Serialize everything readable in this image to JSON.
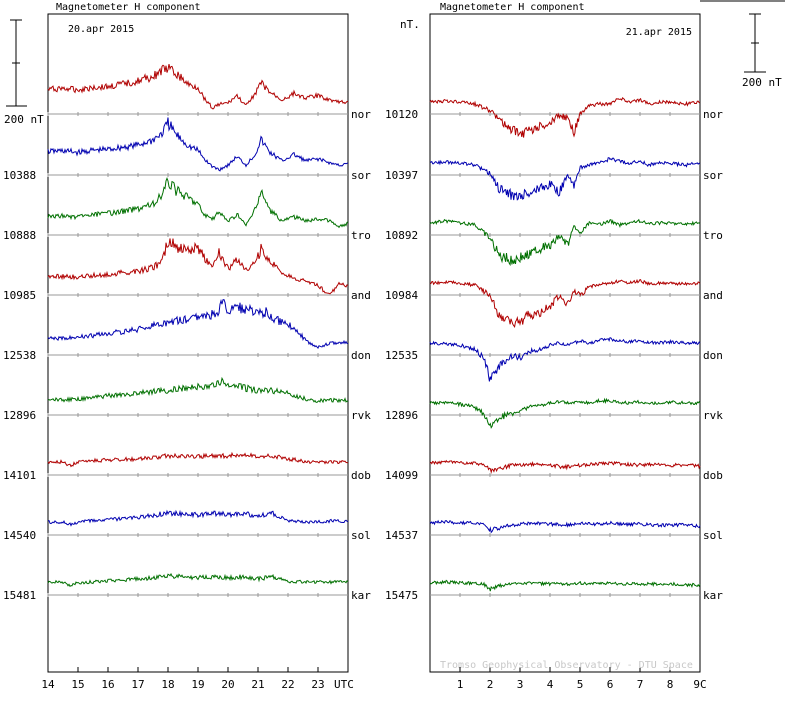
{
  "chart_data": [
    {
      "type": "line",
      "title": "Magnetometer H component",
      "date": "20.apr 2015",
      "scale_label": "200 nT",
      "x_tick_labels": [
        "14",
        "15",
        "16",
        "17",
        "18",
        "19",
        "20",
        "21",
        "22",
        "23",
        "UTC"
      ],
      "x_range": [
        14,
        24
      ],
      "stations": [
        {
          "name": "nor",
          "baseline": "",
          "color": "#b00000",
          "x": [
            14,
            14.5,
            15,
            15.5,
            16,
            16.5,
            17,
            17.5,
            17.8,
            18,
            18.3,
            18.7,
            19,
            19.2,
            19.5,
            19.7,
            20,
            20.3,
            20.6,
            20.9,
            21.1,
            21.4,
            21.8,
            22.2,
            22.6,
            23,
            23.4,
            23.7,
            24
          ],
          "y": [
            60,
            65,
            58,
            70,
            72,
            85,
            100,
            120,
            150,
            160,
            130,
            80,
            70,
            20,
            -30,
            -10,
            -5,
            30,
            -20,
            40,
            90,
            45,
            10,
            40,
            20,
            30,
            10,
            0,
            0
          ]
        },
        {
          "name": "sor",
          "baseline": "10388",
          "color": "#0000b0",
          "x": [
            14,
            14.5,
            15,
            15.5,
            16,
            16.5,
            17,
            17.5,
            17.8,
            18,
            18.3,
            18.7,
            19,
            19.2,
            19.5,
            19.7,
            20,
            20.3,
            20.6,
            20.9,
            21.1,
            21.4,
            21.8,
            22.2,
            22.6,
            23,
            23.4,
            23.7,
            24
          ],
          "y": [
            55,
            58,
            50,
            60,
            65,
            75,
            85,
            110,
            140,
            190,
            130,
            80,
            60,
            20,
            -20,
            -30,
            -10,
            30,
            -10,
            40,
            110,
            50,
            10,
            40,
            10,
            20,
            0,
            -10,
            -5
          ]
        },
        {
          "name": "tro",
          "baseline": "10888",
          "color": "#007000",
          "x": [
            14,
            14.5,
            15,
            15.5,
            16,
            16.5,
            17,
            17.5,
            17.8,
            18,
            18.3,
            18.7,
            19,
            19.2,
            19.5,
            19.7,
            20,
            20.3,
            20.6,
            20.9,
            21.1,
            21.4,
            21.8,
            22.2,
            22.6,
            23,
            23.4,
            23.7,
            24
          ],
          "y": [
            30,
            35,
            28,
            40,
            45,
            55,
            70,
            90,
            130,
            200,
            150,
            120,
            90,
            40,
            20,
            50,
            10,
            40,
            -10,
            60,
            150,
            60,
            10,
            30,
            10,
            20,
            10,
            -20,
            0
          ]
        },
        {
          "name": "and",
          "baseline": "10985",
          "color": "#b00000",
          "x": [
            14,
            14.5,
            15,
            15.5,
            16,
            16.5,
            17,
            17.5,
            17.8,
            18,
            18.3,
            18.7,
            19,
            19.2,
            19.5,
            19.7,
            20,
            20.3,
            20.6,
            20.9,
            21.1,
            21.4,
            21.8,
            22.2,
            22.6,
            23,
            23.4,
            23.7,
            24
          ],
          "y": [
            30,
            32,
            28,
            36,
            40,
            50,
            55,
            75,
            100,
            200,
            170,
            150,
            170,
            120,
            90,
            150,
            70,
            110,
            70,
            90,
            160,
            100,
            50,
            20,
            10,
            -10,
            -60,
            0,
            -20
          ]
        },
        {
          "name": "don",
          "baseline": "12538",
          "color": "#0000b0",
          "x": [
            14,
            14.5,
            15,
            15.5,
            16,
            16.5,
            17,
            17.5,
            18,
            18.5,
            19,
            19.3,
            19.6,
            19.8,
            20,
            20.3,
            20.6,
            21,
            21.3,
            21.6,
            22,
            22.3,
            22.6,
            23,
            23.4,
            23.7,
            24
          ],
          "y": [
            20,
            25,
            30,
            35,
            45,
            55,
            65,
            80,
            100,
            110,
            120,
            140,
            130,
            200,
            150,
            170,
            160,
            140,
            150,
            110,
            90,
            60,
            10,
            -20,
            0,
            0,
            5
          ]
        },
        {
          "name": "rvk",
          "baseline": "12896",
          "color": "#007000",
          "x": [
            14,
            14.5,
            15,
            15.5,
            16,
            16.5,
            17,
            17.5,
            18,
            18.5,
            19,
            19.3,
            19.6,
            19.8,
            20,
            20.3,
            20.6,
            21,
            21.3,
            21.6,
            22,
            22.3,
            22.6,
            23,
            23.4,
            23.7,
            24
          ],
          "y": [
            20,
            15,
            20,
            25,
            35,
            40,
            45,
            55,
            60,
            70,
            80,
            70,
            90,
            100,
            80,
            90,
            70,
            60,
            65,
            55,
            50,
            30,
            20,
            10,
            15,
            10,
            15
          ]
        },
        {
          "name": "dob",
          "baseline": "14101",
          "color": "#b00000",
          "x": [
            14,
            14.5,
            14.7,
            15,
            15.5,
            16,
            16.5,
            17,
            17.5,
            18,
            18.5,
            19,
            19.5,
            20,
            20.5,
            21,
            21.5,
            22,
            22.3,
            22.6,
            23,
            23.5,
            24
          ],
          "y": [
            5,
            5,
            -15,
            5,
            10,
            15,
            18,
            20,
            25,
            35,
            30,
            30,
            35,
            35,
            40,
            30,
            35,
            20,
            15,
            5,
            5,
            5,
            5
          ]
        },
        {
          "name": "sol",
          "baseline": "14540",
          "color": "#0000b0",
          "x": [
            14,
            14.5,
            14.7,
            15,
            15.5,
            16,
            16.5,
            17,
            17.5,
            18,
            18.5,
            19,
            19.5,
            20,
            20.5,
            21,
            21.5,
            21.8,
            22.1,
            22.5,
            23,
            23.5,
            24
          ],
          "y": [
            5,
            5,
            -10,
            5,
            10,
            15,
            20,
            25,
            35,
            50,
            40,
            40,
            45,
            40,
            45,
            35,
            45,
            25,
            10,
            5,
            5,
            10,
            10
          ]
        },
        {
          "name": "kar",
          "baseline": "15481",
          "color": "#007000",
          "x": [
            14,
            14.5,
            14.7,
            15,
            15.5,
            16,
            16.5,
            17,
            17.5,
            18,
            18.5,
            19,
            19.5,
            20,
            20.5,
            21,
            21.5,
            21.8,
            22.1,
            22.5,
            23,
            23.5,
            24
          ],
          "y": [
            5,
            5,
            -10,
            0,
            5,
            10,
            15,
            20,
            25,
            35,
            30,
            25,
            30,
            25,
            30,
            20,
            30,
            15,
            5,
            5,
            5,
            5,
            10
          ]
        }
      ]
    },
    {
      "type": "line",
      "title": "Magnetometer H component",
      "date": "21.apr 2015",
      "unit_label": "nT.",
      "scale_label": "200 nT",
      "credit": "Tromso Geophysical Observatory - DTU Space",
      "x_tick_labels": [
        "1",
        "2",
        "3",
        "4",
        "5",
        "6",
        "7",
        "8",
        "9C"
      ],
      "x_range": [
        0,
        9
      ],
      "stations": [
        {
          "name": "nor",
          "baseline": "10120",
          "color": "#b00000",
          "x": [
            0,
            0.5,
            1,
            1.5,
            2,
            2.3,
            2.7,
            3,
            3.3,
            3.7,
            4,
            4.3,
            4.6,
            4.8,
            5,
            5.3,
            5.6,
            6,
            6.3,
            6.6,
            7,
            7.3,
            7.6,
            8,
            8.5,
            9
          ],
          "y": [
            0,
            5,
            0,
            -10,
            -40,
            -80,
            -130,
            -150,
            -140,
            -110,
            -100,
            -60,
            -80,
            -140,
            -60,
            -20,
            -10,
            -10,
            20,
            0,
            10,
            -10,
            0,
            0,
            -10,
            0
          ]
        },
        {
          "name": "sor",
          "baseline": "10397",
          "color": "#0000b0",
          "x": [
            0,
            0.5,
            1,
            1.5,
            2,
            2.3,
            2.7,
            3,
            3.3,
            3.7,
            4,
            4.3,
            4.6,
            4.8,
            5,
            5.3,
            5.6,
            6,
            6.3,
            6.6,
            7,
            7.3,
            7.6,
            8,
            8.5,
            9
          ],
          "y": [
            0,
            5,
            0,
            -10,
            -50,
            -120,
            -150,
            -160,
            -140,
            -120,
            -100,
            -140,
            -60,
            -120,
            -20,
            -10,
            0,
            20,
            10,
            0,
            10,
            -10,
            0,
            0,
            -10,
            0
          ]
        },
        {
          "name": "tro",
          "baseline": "10892",
          "color": "#007000",
          "x": [
            0,
            0.5,
            1,
            1.5,
            2,
            2.3,
            2.7,
            3,
            3.3,
            3.7,
            4,
            4.3,
            4.6,
            4.8,
            5,
            5.3,
            5.6,
            6,
            6.3,
            6.6,
            7,
            7.3,
            7.6,
            8,
            8.5,
            9
          ],
          "y": [
            0,
            10,
            0,
            -10,
            -70,
            -150,
            -180,
            -160,
            -150,
            -120,
            -110,
            -60,
            -100,
            -20,
            -50,
            0,
            -10,
            10,
            -10,
            0,
            10,
            -5,
            0,
            0,
            -5,
            0
          ]
        },
        {
          "name": "and",
          "baseline": "10984",
          "color": "#b00000",
          "x": [
            0,
            0.5,
            1,
            1.5,
            2,
            2.3,
            2.7,
            3,
            3.3,
            3.7,
            4,
            4.3,
            4.6,
            4.8,
            5,
            5.3,
            5.6,
            6,
            6.3,
            6.6,
            7,
            7.3,
            7.6,
            8,
            8.5,
            9
          ],
          "y": [
            0,
            5,
            0,
            -10,
            -60,
            -150,
            -190,
            -180,
            -150,
            -140,
            -110,
            -60,
            -100,
            -40,
            -60,
            -20,
            -10,
            0,
            10,
            0,
            10,
            -5,
            0,
            0,
            -5,
            0
          ]
        },
        {
          "name": "don",
          "baseline": "12535",
          "color": "#0000b0",
          "x": [
            0,
            0.5,
            1,
            1.5,
            1.8,
            2,
            2.3,
            2.7,
            3,
            3.3,
            3.7,
            4,
            4.3,
            4.6,
            5,
            5.3,
            5.6,
            6,
            6.3,
            6.6,
            7,
            7.5,
            8,
            8.5,
            9
          ],
          "y": [
            0,
            -5,
            -10,
            -30,
            -70,
            -170,
            -110,
            -60,
            -70,
            -40,
            -30,
            -10,
            0,
            -10,
            10,
            0,
            10,
            20,
            10,
            5,
            10,
            0,
            5,
            0,
            0
          ]
        },
        {
          "name": "rvk",
          "baseline": "12896",
          "color": "#007000",
          "x": [
            0,
            0.5,
            1,
            1.5,
            1.8,
            2,
            2.3,
            2.7,
            3,
            3.3,
            3.7,
            4,
            4.3,
            4.6,
            5,
            5.3,
            5.6,
            6,
            6.3,
            6.6,
            7,
            7.5,
            8,
            8.5,
            9
          ],
          "y": [
            0,
            0,
            -5,
            -20,
            -50,
            -110,
            -70,
            -50,
            -40,
            -20,
            -10,
            0,
            5,
            0,
            5,
            0,
            10,
            10,
            5,
            0,
            5,
            0,
            5,
            0,
            0
          ]
        },
        {
          "name": "dob",
          "baseline": "14099",
          "color": "#b00000",
          "x": [
            0,
            0.5,
            1,
            1.5,
            1.8,
            2,
            2.3,
            2.7,
            3,
            3.5,
            4,
            4.5,
            5,
            5.5,
            6,
            6.5,
            7,
            7.5,
            8,
            8.5,
            9
          ],
          "y": [
            0,
            5,
            0,
            0,
            -10,
            -35,
            -30,
            -10,
            -10,
            -5,
            -10,
            -20,
            -10,
            -5,
            0,
            -5,
            -10,
            -5,
            -10,
            -10,
            -15
          ]
        },
        {
          "name": "sol",
          "baseline": "14537",
          "color": "#0000b0",
          "x": [
            0,
            0.5,
            1,
            1.5,
            1.8,
            2,
            2.3,
            2.7,
            3,
            3.5,
            4,
            4.5,
            5,
            5.5,
            6,
            6.5,
            7,
            7.5,
            8,
            8.5,
            9
          ],
          "y": [
            0,
            5,
            0,
            0,
            -10,
            -35,
            -25,
            -10,
            -5,
            0,
            -5,
            -10,
            0,
            -5,
            0,
            -5,
            -5,
            -10,
            -10,
            -10,
            -15
          ]
        },
        {
          "name": "kar",
          "baseline": "15475",
          "color": "#007000",
          "x": [
            0,
            0.5,
            1,
            1.5,
            1.8,
            2,
            2.3,
            2.7,
            3,
            3.5,
            4,
            4.5,
            5,
            5.5,
            6,
            6.5,
            7,
            7.5,
            8,
            8.5,
            9
          ],
          "y": [
            0,
            5,
            0,
            0,
            -5,
            -30,
            -15,
            -5,
            0,
            0,
            -5,
            -5,
            0,
            -5,
            0,
            -5,
            -5,
            -5,
            -5,
            -10,
            -10
          ]
        }
      ]
    }
  ]
}
